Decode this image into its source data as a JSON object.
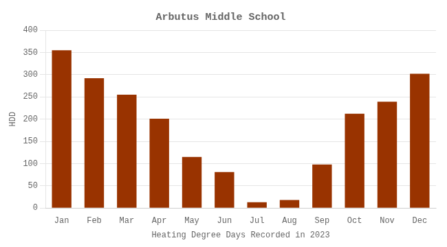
{
  "chart_data": {
    "type": "bar",
    "title": "Arbutus Middle School",
    "xlabel": "Heating Degree Days Recorded in 2023",
    "ylabel": "HDD",
    "categories": [
      "Jan",
      "Feb",
      "Mar",
      "Apr",
      "May",
      "Jun",
      "Jul",
      "Aug",
      "Sep",
      "Oct",
      "Nov",
      "Dec"
    ],
    "values": [
      355,
      292,
      255,
      201,
      115,
      81,
      13,
      18,
      98,
      212,
      239,
      302
    ],
    "color": "#993300",
    "ylim": [
      0,
      400
    ],
    "yticks": [
      0,
      50,
      100,
      150,
      200,
      250,
      300,
      350,
      400
    ],
    "grid": true
  }
}
